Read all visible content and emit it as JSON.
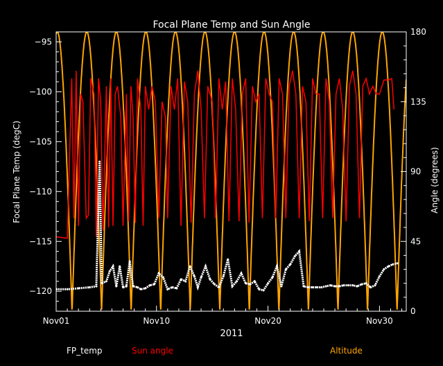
{
  "chart_data": {
    "type": "line",
    "title": "Focal Plane Temp and Sun Angle",
    "xlabel": "2011",
    "ylabel_left": "Focal Plane Temp (degC)",
    "ylabel_right": "Angle (degrees)",
    "xlim": [
      1,
      32.4
    ],
    "ylim_left": [
      -122,
      -94
    ],
    "ylim_right": [
      0,
      180
    ],
    "x_ticks": [
      {
        "value": 1,
        "label": "Nov01"
      },
      {
        "value": 10,
        "label": "Nov10"
      },
      {
        "value": 20,
        "label": "Nov20"
      },
      {
        "value": 30,
        "label": "Nov30"
      }
    ],
    "y_ticks_left": [
      -95,
      -100,
      -105,
      -110,
      -115,
      -120
    ],
    "y_ticks_right": [
      0,
      45,
      90,
      135,
      180
    ],
    "legend": [
      {
        "label": "FP_temp",
        "color": "#ffffff"
      },
      {
        "label": "Sun angle",
        "color": "#ff0000"
      },
      {
        "label": "Altitude",
        "color": "#ffa500"
      }
    ],
    "series": [
      {
        "name": "FP_temp",
        "axis": "left",
        "color": "#ffffff",
        "x": [
          1.0,
          2.0,
          3.0,
          4.0,
          4.6,
          4.9,
          5.1,
          5.5,
          5.8,
          6.1,
          6.4,
          6.7,
          7.0,
          7.3,
          7.6,
          7.9,
          8.3,
          8.6,
          9.0,
          9.4,
          9.8,
          10.2,
          10.6,
          11.0,
          11.4,
          11.8,
          12.2,
          12.6,
          13.0,
          13.4,
          13.7,
          14.0,
          14.4,
          14.8,
          15.2,
          15.6,
          16.0,
          16.4,
          16.8,
          17.2,
          17.6,
          18.0,
          18.4,
          18.8,
          19.2,
          19.6,
          20.0,
          20.4,
          20.8,
          21.2,
          21.6,
          22.0,
          22.4,
          22.8,
          23.2,
          23.6,
          24.0,
          24.4,
          24.8,
          25.2,
          25.6,
          26.0,
          26.4,
          26.8,
          27.2,
          27.6,
          28.0,
          28.4,
          28.8,
          29.2,
          29.6,
          30.0,
          30.4,
          30.8,
          31.2,
          31.6
        ],
        "values": [
          -119.8,
          -119.8,
          -119.7,
          -119.6,
          -119.5,
          -107.0,
          -119.2,
          -119.0,
          -118.0,
          -117.5,
          -119.5,
          -117.5,
          -119.6,
          -119.5,
          -117.0,
          -119.5,
          -119.6,
          -119.8,
          -119.7,
          -119.4,
          -119.3,
          -118.2,
          -118.6,
          -119.8,
          -119.6,
          -119.7,
          -118.8,
          -119.0,
          -117.5,
          -118.5,
          -119.6,
          -118.6,
          -117.5,
          -118.8,
          -119.3,
          -119.6,
          -118.5,
          -116.8,
          -119.5,
          -119.0,
          -118.2,
          -119.2,
          -119.3,
          -119.0,
          -119.8,
          -119.9,
          -119.2,
          -118.6,
          -117.5,
          -119.5,
          -117.8,
          -117.3,
          -116.5,
          -116.0,
          -119.5,
          -119.6,
          -119.6,
          -119.6,
          -119.6,
          -119.5,
          -119.4,
          -119.5,
          -119.5,
          -119.4,
          -119.4,
          -119.4,
          -119.5,
          -119.3,
          -119.2,
          -119.6,
          -119.4,
          -118.5,
          -117.8,
          -117.5,
          -117.3,
          -117.2
        ]
      },
      {
        "name": "Sun angle",
        "axis": "right",
        "color": "#ff0000",
        "x": [
          1.0,
          2.0,
          2.4,
          2.6,
          2.8,
          3.0,
          3.2,
          3.4,
          3.7,
          3.9,
          4.1,
          4.4,
          4.6,
          4.8,
          5.0,
          5.2,
          5.5,
          5.7,
          5.9,
          6.1,
          6.3,
          6.5,
          6.8,
          7.0,
          7.3,
          7.5,
          7.7,
          7.9,
          8.1,
          8.3,
          8.6,
          8.8,
          9.0,
          9.3,
          9.6,
          9.9,
          10.2,
          10.5,
          10.8,
          11.0,
          11.3,
          11.6,
          11.9,
          12.2,
          12.5,
          12.8,
          13.1,
          13.4,
          13.7,
          14.0,
          14.3,
          14.6,
          15.0,
          15.3,
          15.6,
          15.9,
          16.2,
          16.5,
          16.8,
          17.1,
          17.4,
          17.7,
          18.0,
          18.3,
          18.6,
          18.9,
          19.2,
          19.5,
          19.8,
          20.1,
          20.4,
          20.7,
          21.0,
          21.3,
          21.6,
          21.9,
          22.2,
          22.5,
          22.8,
          23.1,
          23.4,
          23.7,
          24.0,
          24.3,
          24.6,
          24.9,
          25.2,
          25.5,
          25.8,
          26.1,
          26.4,
          26.7,
          27.0,
          27.3,
          27.6,
          27.9,
          28.2,
          28.5,
          28.8,
          29.1,
          29.4,
          29.7,
          30.0,
          30.4,
          30.8,
          31.1,
          31.3
        ],
        "values": [
          48,
          47,
          150,
          60,
          155,
          55,
          140,
          135,
          60,
          62,
          150,
          140,
          48,
          150,
          135,
          52,
          145,
          54,
          150,
          55,
          140,
          145,
          125,
          55,
          140,
          58,
          145,
          125,
          57,
          150,
          130,
          55,
          145,
          130,
          145,
          135,
          60,
          135,
          125,
          60,
          145,
          130,
          150,
          55,
          148,
          135,
          57,
          140,
          155,
          130,
          60,
          145,
          135,
          60,
          150,
          130,
          148,
          58,
          150,
          130,
          58,
          140,
          150,
          57,
          145,
          135,
          140,
          60,
          150,
          140,
          135,
          60,
          150,
          140,
          60,
          145,
          155,
          140,
          60,
          145,
          135,
          58,
          150,
          140,
          140,
          60,
          150,
          135,
          60,
          140,
          150,
          130,
          58,
          145,
          155,
          140,
          60,
          145,
          150,
          140,
          145,
          140,
          140,
          149,
          149,
          150,
          130
        ]
      },
      {
        "name": "Altitude",
        "axis": "right",
        "color": "#ffa500",
        "period_days": 2.65,
        "first_peak": 1.1,
        "min": 0,
        "max": 180
      }
    ]
  }
}
